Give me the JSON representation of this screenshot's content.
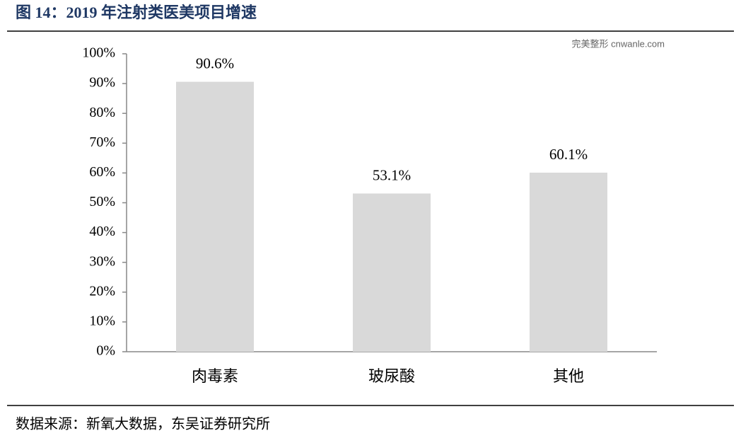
{
  "chart_data": {
    "type": "bar",
    "title": "图 14：2019 年注射类医美项目增速",
    "source": "数据来源：新氧大数据，东吴证券研究所",
    "watermark": "完美整形 cnwanle.com",
    "categories": [
      "肉毒素",
      "玻尿酸",
      "其他"
    ],
    "values": [
      90.6,
      53.1,
      60.1
    ],
    "value_labels": [
      "90.6%",
      "53.1%",
      "60.1%"
    ],
    "color": "#d9d9d9",
    "ylim": [
      0,
      100
    ],
    "yticks": [
      {
        "value": 0,
        "label": "0%"
      },
      {
        "value": 10,
        "label": "10%"
      },
      {
        "value": 20,
        "label": "20%"
      },
      {
        "value": 30,
        "label": "30%"
      },
      {
        "value": 40,
        "label": "40%"
      },
      {
        "value": 50,
        "label": "50%"
      },
      {
        "value": 60,
        "label": "60%"
      },
      {
        "value": 70,
        "label": "70%"
      },
      {
        "value": 80,
        "label": "80%"
      },
      {
        "value": 90,
        "label": "90%"
      },
      {
        "value": 100,
        "label": "100%"
      }
    ],
    "grid": false
  }
}
